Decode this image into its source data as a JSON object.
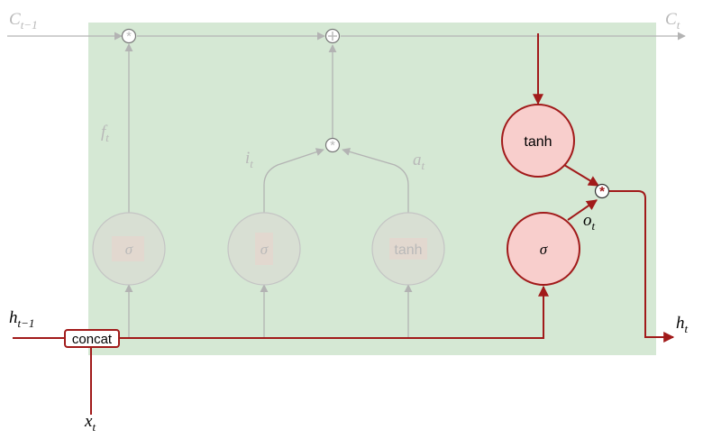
{
  "labels": {
    "cell_prev": {
      "base": "C",
      "sub": "t−1"
    },
    "cell_next": {
      "base": "C",
      "sub": "t"
    },
    "hidden_prev": {
      "base": "h",
      "sub": "t−1"
    },
    "hidden_next": {
      "base": "h",
      "sub": "t"
    },
    "input": {
      "base": "x",
      "sub": "t"
    },
    "forget_gate": {
      "base": "f",
      "sub": "t"
    },
    "input_gate": {
      "base": "i",
      "sub": "t"
    },
    "candidate": {
      "base": "a",
      "sub": "t"
    },
    "output_gate": {
      "base": "o",
      "sub": "t"
    }
  },
  "nodes": {
    "concat": "concat",
    "forget_sigma": "σ",
    "input_sigma": "σ",
    "candidate_tanh": "tanh",
    "output_sigma": "σ",
    "cell_tanh": "tanh"
  },
  "colors": {
    "cell_background": "#d5e8d4",
    "active": "#a11a1a",
    "active_fill": "#f8cecc",
    "faded": "#b3b3b3",
    "faded_text": "#b8b8b8",
    "faded_node_fill": "#d8dfd3"
  }
}
